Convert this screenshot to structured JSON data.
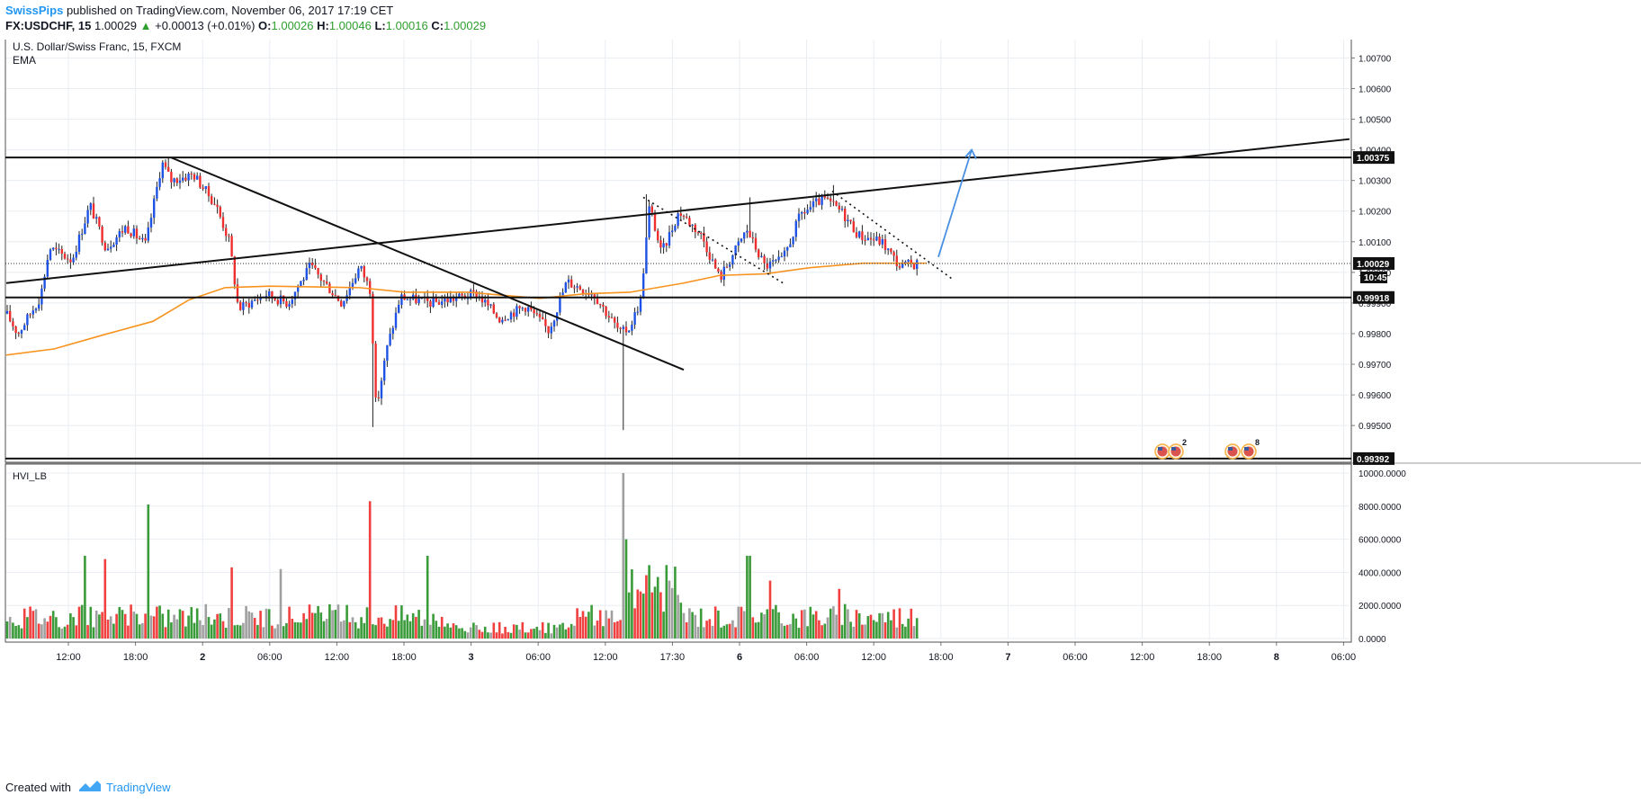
{
  "header": {
    "author": "SwissPips",
    "published_text": "published on TradingView.com, November 06, 2017 17:19 CET",
    "symbol": "FX:USDCHF, 15",
    "last": "1.00029",
    "change": "+0.00013 (+0.01%)",
    "o_label": "O:",
    "o_value": "1.00026",
    "h_label": "H:",
    "h_value": "1.00046",
    "l_label": "L:",
    "l_value": "1.00016",
    "c_label": "C:",
    "c_value": "1.00029"
  },
  "footer": {
    "created_with": "Created with",
    "brand": "TradingView"
  },
  "colors": {
    "up": "#1e53e5",
    "down": "#ef2f2f",
    "ema": "#f7931e",
    "vol_up": "#3a9b3a",
    "vol_down": "#f04040",
    "vol_neutral": "#a0a0a0",
    "grid": "#e8edf2",
    "border": "#505050"
  },
  "chart_data": [
    {
      "type": "candlestick",
      "title": "U.S. Dollar/Swiss Franc, 15, FXCM",
      "indicator": "EMA",
      "ylim": [
        0.9938,
        1.0076
      ],
      "yticks": [
        0.995,
        0.996,
        0.997,
        0.998,
        0.999,
        1.0,
        1.001,
        1.002,
        1.003,
        1.004,
        1.005,
        1.006,
        1.007
      ],
      "ytick_labels": [
        "0.99500",
        "0.99600",
        "0.99700",
        "0.99800",
        "0.99900",
        "1.00000",
        "1.00100",
        "1.00200",
        "1.00300",
        "1.00400",
        "1.00500",
        "1.00600",
        "1.00700"
      ],
      "xlabels": [
        "12:00",
        "18:00",
        "2",
        "06:00",
        "12:00",
        "18:00",
        "3",
        "06:00",
        "12:00",
        "17:30",
        "6",
        "06:00",
        "12:00",
        "18:00",
        "7",
        "06:00",
        "12:00",
        "18:00",
        "8",
        "06:00"
      ],
      "price_path": [
        [
          0,
          0.999
        ],
        [
          20,
          0.998
        ],
        [
          45,
          0.9992
        ],
        [
          55,
          1.0008
        ],
        [
          80,
          1.0004
        ],
        [
          100,
          1.0022
        ],
        [
          118,
          1.0008
        ],
        [
          140,
          1.0015
        ],
        [
          162,
          1.0009
        ],
        [
          180,
          1.0036
        ],
        [
          190,
          1.003
        ],
        [
          215,
          1.0032
        ],
        [
          240,
          1.0022
        ],
        [
          255,
          1.001
        ],
        [
          265,
          0.9988
        ],
        [
          295,
          0.9993
        ],
        [
          320,
          0.999
        ],
        [
          345,
          1.0002
        ],
        [
          380,
          0.999
        ],
        [
          400,
          1.0002
        ],
        [
          412,
          0.9994
        ],
        [
          418,
          0.9955
        ],
        [
          430,
          0.9975
        ],
        [
          445,
          0.9992
        ],
        [
          480,
          0.999
        ],
        [
          530,
          0.9993
        ],
        [
          555,
          0.9985
        ],
        [
          585,
          0.9989
        ],
        [
          610,
          0.9981
        ],
        [
          630,
          0.9997
        ],
        [
          660,
          0.9993
        ],
        [
          690,
          0.998
        ],
        [
          700,
          0.9982
        ],
        [
          712,
          0.9991
        ],
        [
          722,
          1.0022
        ],
        [
          735,
          1.0006
        ],
        [
          755,
          1.002
        ],
        [
          780,
          1.0012
        ],
        [
          800,
          0.9998
        ],
        [
          830,
          1.0014
        ],
        [
          850,
          1.0002
        ],
        [
          870,
          1.0004
        ],
        [
          890,
          1.0019
        ],
        [
          915,
          1.0024
        ],
        [
          935,
          1.002
        ],
        [
          955,
          1.0012
        ],
        [
          980,
          1.001
        ],
        [
          1000,
          1.0002
        ],
        [
          1020,
          1.0003
        ]
      ],
      "wick_spikes": [
        {
          "x": 413,
          "low": 0.99495
        },
        {
          "x": 692,
          "low": 0.99485
        },
        {
          "x": 188,
          "high": 1.00375
        },
        {
          "x": 718,
          "high": 1.00255
        },
        {
          "x": 835,
          "high": 1.00245
        },
        {
          "x": 925,
          "high": 1.00285
        }
      ],
      "ema": [
        [
          7,
          0.9973
        ],
        [
          60,
          0.9975
        ],
        [
          120,
          0.998
        ],
        [
          170,
          0.9984
        ],
        [
          210,
          0.9991
        ],
        [
          250,
          0.9995
        ],
        [
          300,
          0.99955
        ],
        [
          400,
          0.9995
        ],
        [
          450,
          0.99935
        ],
        [
          520,
          0.99935
        ],
        [
          600,
          0.99915
        ],
        [
          650,
          0.9993
        ],
        [
          700,
          0.99935
        ],
        [
          760,
          0.99965
        ],
        [
          800,
          0.9999
        ],
        [
          850,
          0.99995
        ],
        [
          900,
          1.00015
        ],
        [
          960,
          1.0003
        ],
        [
          1030,
          1.0003
        ]
      ],
      "horizontal_levels": [
        {
          "label": "1.00375",
          "y": 1.00375
        },
        {
          "label": "0.99918",
          "y": 0.99918
        },
        {
          "label": "0.99392",
          "y": 0.99392
        }
      ],
      "current_price": {
        "label": "1.00029",
        "y": 1.00029,
        "time_label": "10:45"
      },
      "trend_lines": [
        {
          "x1": 7,
          "y1": 0.99965,
          "x2": 1500,
          "y2": 1.00435,
          "style": "solid"
        },
        {
          "x1": 190,
          "y1": 1.00375,
          "x2": 760,
          "y2": 0.99682,
          "style": "solid"
        },
        {
          "x1": 715,
          "y1": 1.00245,
          "x2": 872,
          "y2": 0.99962,
          "style": "dotted"
        },
        {
          "x1": 925,
          "y1": 1.00265,
          "x2": 1060,
          "y2": 0.99975,
          "style": "dotted"
        }
      ],
      "projection_arrow": {
        "x1": 1043,
        "y1": 1.0005,
        "x2": 1080,
        "y2": 1.004
      },
      "event_markers": [
        {
          "x": 1292,
          "badge": ""
        },
        {
          "x": 1307,
          "badge": "2"
        },
        {
          "x": 1370,
          "badge": ""
        },
        {
          "x": 1388,
          "badge": "8"
        }
      ]
    },
    {
      "type": "bar",
      "title": "HVI_LB",
      "ylim": [
        0,
        10000
      ],
      "yticks": [
        0,
        2000,
        4000,
        6000,
        8000,
        10000
      ],
      "ytick_labels": [
        "0.0000",
        "2000.0000",
        "4000.0000",
        "6000.0000",
        "8000.0000",
        "10000.0000"
      ],
      "volume_peaks": [
        {
          "x": 165,
          "value": 8100,
          "color": "up"
        },
        {
          "x": 412,
          "value": 8300,
          "color": "down"
        },
        {
          "x": 694,
          "value": 10000,
          "color": "neutral"
        },
        {
          "x": 695,
          "value": 6000,
          "color": "up"
        },
        {
          "x": 93,
          "value": 5000,
          "color": "up"
        },
        {
          "x": 116,
          "value": 4800,
          "color": "down"
        },
        {
          "x": 475,
          "value": 5000,
          "color": "up"
        },
        {
          "x": 832,
          "value": 5000,
          "color": "up"
        },
        {
          "x": 855,
          "value": 3500,
          "color": "down"
        },
        {
          "x": 313,
          "value": 4200,
          "color": "neutral"
        },
        {
          "x": 259,
          "value": 4300,
          "color": "down"
        },
        {
          "x": 934,
          "value": 3000,
          "color": "down"
        }
      ]
    }
  ]
}
